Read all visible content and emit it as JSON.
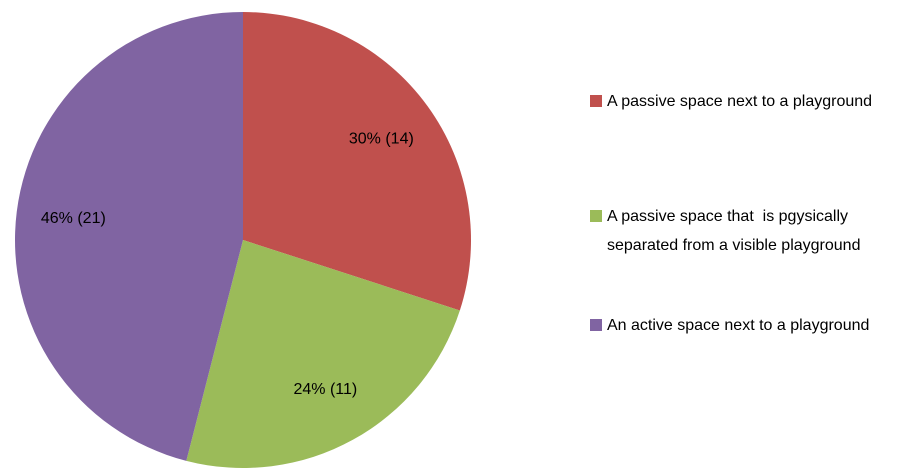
{
  "chart_data": {
    "type": "pie",
    "categories": [
      "A passive space next to a playground",
      "A passive space that  is pgysically separated from a visible playground",
      "An active space next to a playground"
    ],
    "values": [
      30,
      24,
      46
    ],
    "value_labels": [
      "30% (14)",
      "24% (11)",
      "46% (21)"
    ],
    "colors": [
      "#c0504d",
      "#9bbb59",
      "#8064a2"
    ],
    "legend": "right"
  }
}
